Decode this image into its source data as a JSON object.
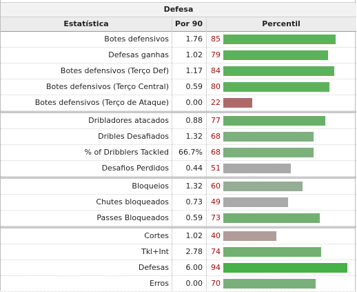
{
  "table": {
    "caption": "Defesa",
    "headers": {
      "stat": "Estatística",
      "per90": "Por 90",
      "percentile": "Percentil"
    },
    "rows": [
      {
        "stat": "Botes defensivos",
        "per90": "1.76",
        "percentile": "85",
        "color": "#5cb25c",
        "group_start": false
      },
      {
        "stat": "Defesas ganhas",
        "per90": "1.02",
        "percentile": "79",
        "color": "#5cb25c",
        "group_start": false
      },
      {
        "stat": "Botes defensivos (Terço Def)",
        "per90": "1.17",
        "percentile": "84",
        "color": "#5cb25c",
        "group_start": false
      },
      {
        "stat": "Botes defensivos (Terço Central)",
        "per90": "0.59",
        "percentile": "80",
        "color": "#5cb25c",
        "group_start": false
      },
      {
        "stat": "Botes defensivos (Terço de Ataque)",
        "per90": "0.00",
        "percentile": "22",
        "color": "#b06969",
        "group_start": false
      },
      {
        "stat": "Dribladores atacados",
        "per90": "0.88",
        "percentile": "77",
        "color": "#68b068",
        "group_start": true
      },
      {
        "stat": "Dribles Desafiados",
        "per90": "1.32",
        "percentile": "68",
        "color": "#7cb07c",
        "group_start": false
      },
      {
        "stat": "% of Dribblers Tackled",
        "per90": "66.7%",
        "percentile": "68",
        "color": "#7cb07c",
        "group_start": false
      },
      {
        "stat": "Desafios Perdidos",
        "per90": "0.44",
        "percentile": "51",
        "color": "#a9a9a9",
        "group_start": false
      },
      {
        "stat": "Bloqueios",
        "per90": "1.32",
        "percentile": "60",
        "color": "#94ad94",
        "group_start": true
      },
      {
        "stat": "Chutes bloqueados",
        "per90": "0.73",
        "percentile": "49",
        "color": "#aaaaaa",
        "group_start": false
      },
      {
        "stat": "Passes Bloqueados",
        "per90": "0.59",
        "percentile": "73",
        "color": "#72b072",
        "group_start": false
      },
      {
        "stat": "Cortes",
        "per90": "1.02",
        "percentile": "40",
        "color": "#b19c9c",
        "group_start": true
      },
      {
        "stat": "Tkl+Int",
        "per90": "2.78",
        "percentile": "74",
        "color": "#72b072",
        "group_start": false
      },
      {
        "stat": "Defesas",
        "per90": "6.00",
        "percentile": "94",
        "color": "#46b146",
        "group_start": false
      },
      {
        "stat": "Erros",
        "per90": "0.00",
        "percentile": "70",
        "color": "#79b079",
        "group_start": false
      }
    ]
  }
}
